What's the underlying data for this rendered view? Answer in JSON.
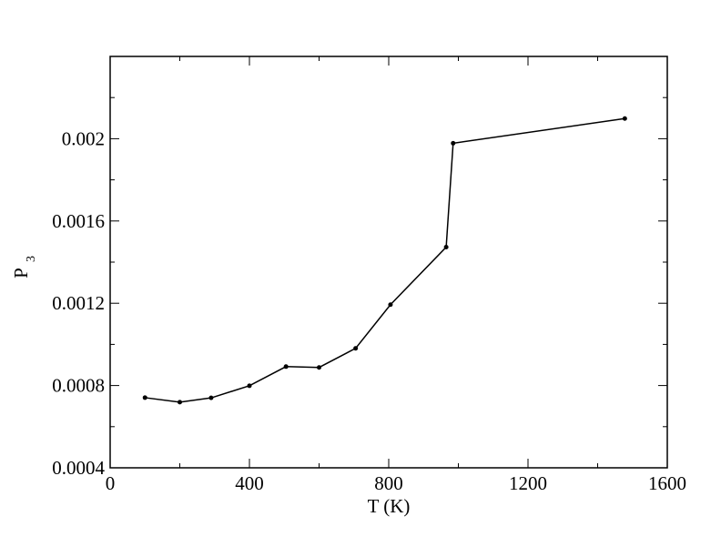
{
  "chart_data": {
    "type": "line",
    "xlabel": "T (K)",
    "ylabel": "P",
    "ylabel_subscript": "3",
    "x": [
      100,
      200,
      290,
      400,
      505,
      600,
      705,
      805,
      965,
      985,
      1478
    ],
    "series": [
      {
        "color": "#000000",
        "values": [
          0.000741,
          0.000719,
          0.00074,
          0.000799,
          0.000892,
          0.000888,
          0.000981,
          0.001193,
          0.001473,
          0.001978,
          0.002098
        ]
      }
    ],
    "xlim": [
      0,
      1600
    ],
    "xticks": [
      0,
      400,
      800,
      1200,
      1600
    ],
    "xminorticks": [
      200,
      600,
      1000,
      1400
    ],
    "ylim": [
      0.0004,
      0.0024
    ],
    "yticks": [
      0.0004,
      0.0008,
      0.0012,
      0.0016,
      0.002
    ],
    "yminorticks": [
      0.0006,
      0.001,
      0.0014,
      0.0018,
      0.0022
    ],
    "grid": false
  }
}
